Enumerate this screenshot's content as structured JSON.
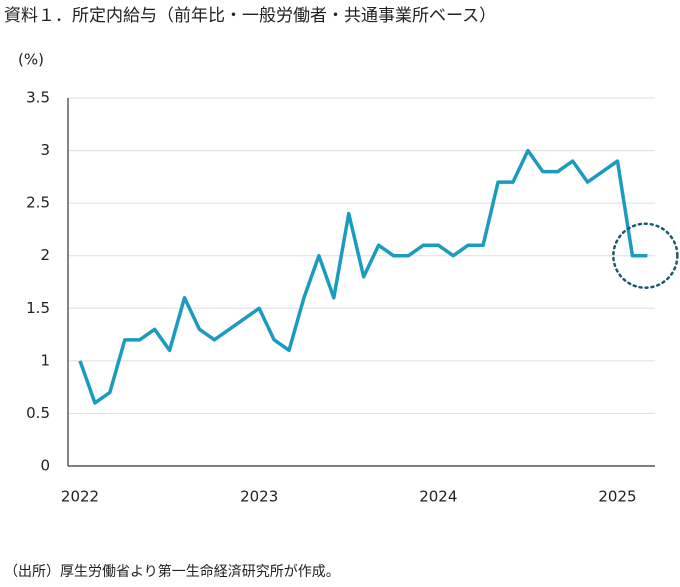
{
  "chart_data": {
    "type": "line",
    "title": "資料１．所定内給与（前年比・一般労働者・共通事業所ベース）",
    "y_label": "(%)",
    "source": "（出所）厚生労働省より第一生命経済研究所が作成。",
    "categories": [
      "2022",
      null,
      null,
      null,
      null,
      null,
      null,
      null,
      null,
      null,
      null,
      null,
      "2023",
      null,
      null,
      null,
      null,
      null,
      null,
      null,
      null,
      null,
      null,
      null,
      "2024",
      null,
      null,
      null,
      null,
      null,
      null,
      null,
      null,
      null,
      null,
      null,
      "2025",
      null,
      null
    ],
    "series": [
      {
        "name": "所定内給与",
        "color": "#1a9bbf",
        "values": [
          1.0,
          0.6,
          0.7,
          1.2,
          1.2,
          1.3,
          1.1,
          1.6,
          1.3,
          1.2,
          1.3,
          1.4,
          1.5,
          1.2,
          1.1,
          1.6,
          2.0,
          1.6,
          2.4,
          1.8,
          2.1,
          2.0,
          2.0,
          2.1,
          2.1,
          2.0,
          2.1,
          2.1,
          2.7,
          2.7,
          3.0,
          2.8,
          2.8,
          2.9,
          2.7,
          2.8,
          2.9,
          2.0,
          2.0
        ]
      }
    ],
    "ylim": [
      0,
      3.5
    ],
    "yticks": [
      0,
      0.5,
      1,
      1.5,
      2,
      2.5,
      3,
      3.5
    ],
    "grid": true
  }
}
